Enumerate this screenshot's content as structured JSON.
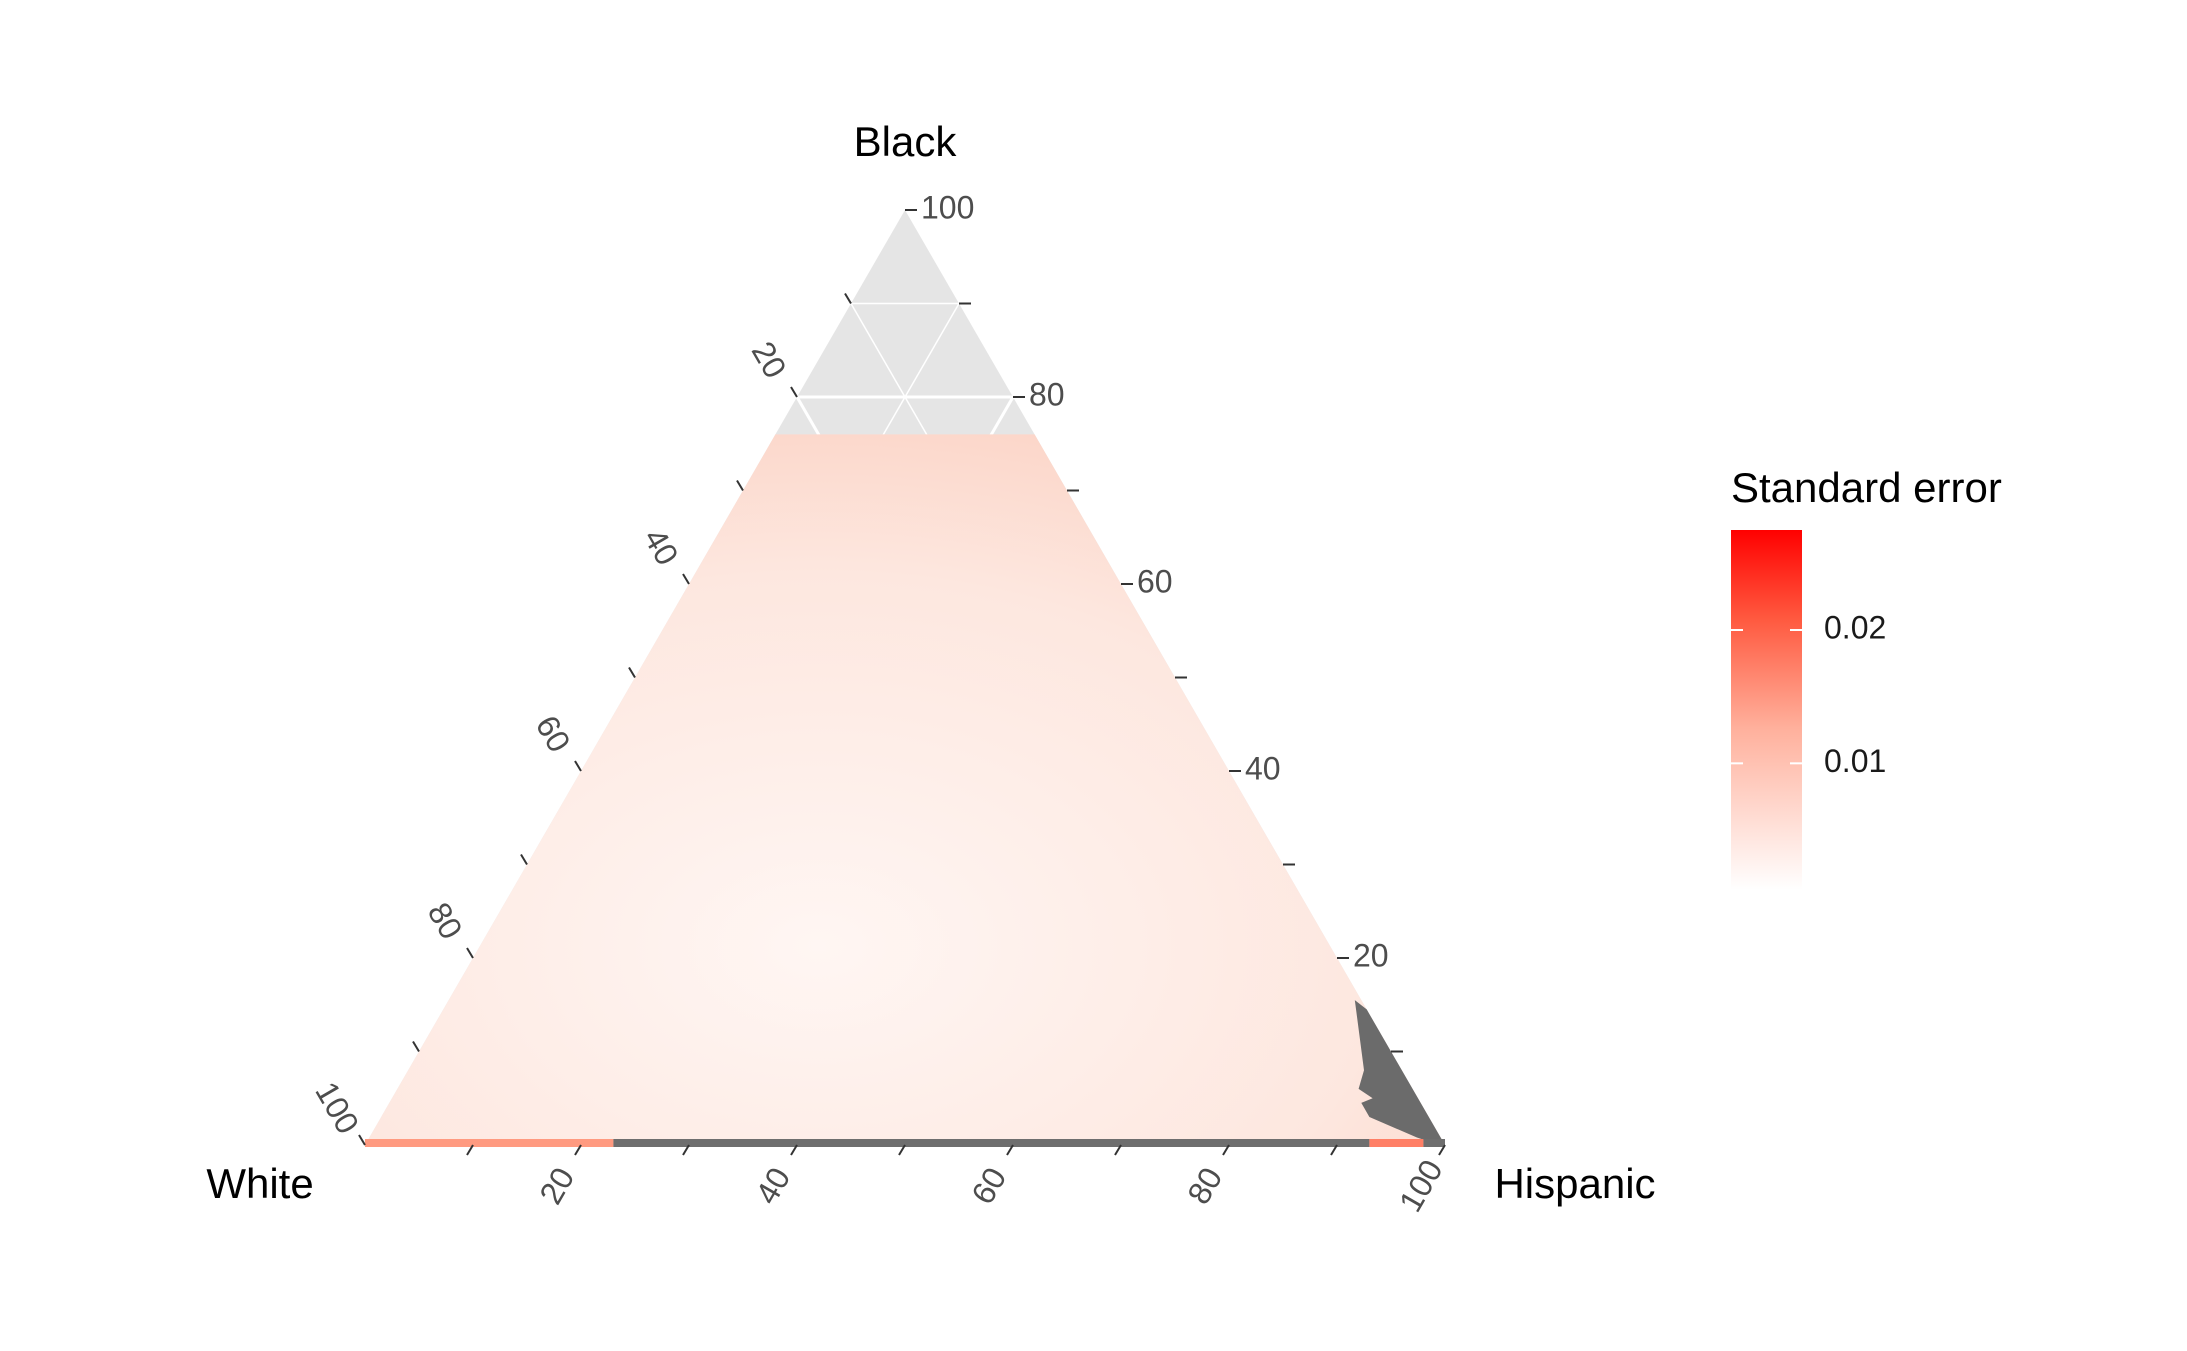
{
  "chart_data": {
    "type": "ternary",
    "vertices": {
      "top": "Black",
      "left": "White",
      "right": "Hispanic"
    },
    "tick_values": [
      20,
      40,
      60,
      80,
      100
    ],
    "tick_labels": {
      "black": [
        "20",
        "40",
        "60",
        "80",
        "100"
      ],
      "white": [
        "20",
        "40",
        "60",
        "80",
        "100"
      ],
      "hispanic": [
        "20",
        "40",
        "60",
        "80",
        "100"
      ]
    },
    "grid": true,
    "background_color": "#e5e5e5",
    "fill_region": {
      "description_values": "estimated standard error surface over compositions with Black share up to ~76%",
      "black_max": 76,
      "fill_color_low": "#fff5f2",
      "fill_color_high": "#fdd3c6"
    },
    "missing_region_color": "#6b6b6b",
    "legend": {
      "title": "Standard error",
      "labels": [
        "0.02",
        "0.01"
      ],
      "label_values": [
        0.02,
        0.01
      ],
      "min": 0.0005,
      "max": 0.0275,
      "color_low": "#ffffff",
      "color_mid": "#ff8c72",
      "color_high": "#ff0000",
      "position": "right"
    }
  }
}
